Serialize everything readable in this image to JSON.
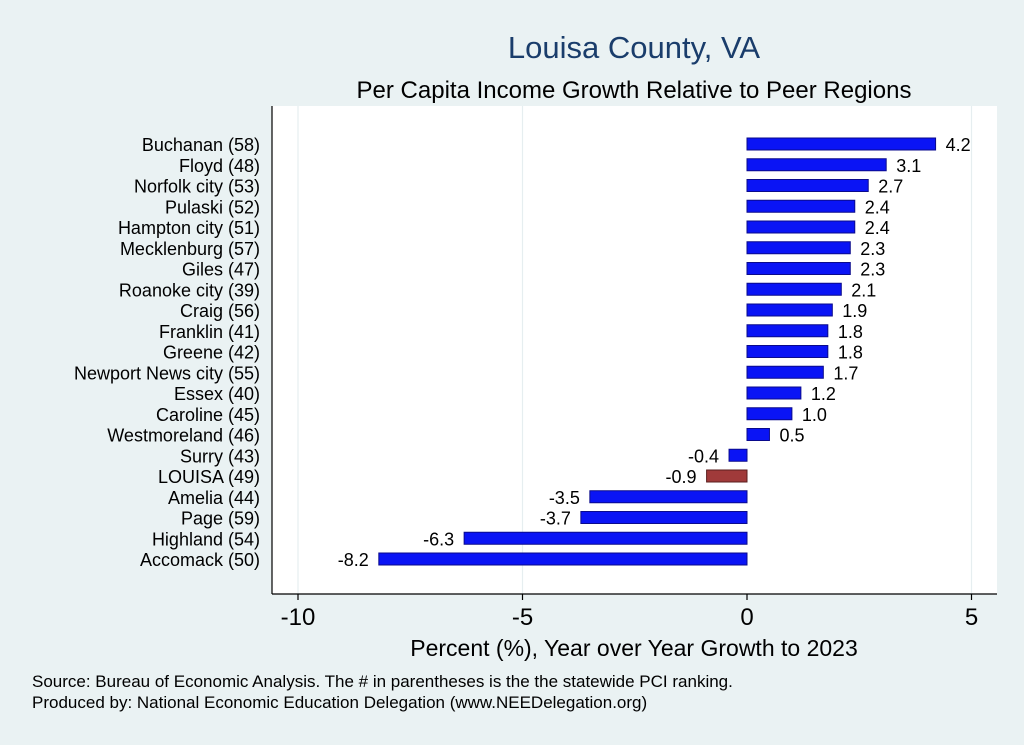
{
  "chart_data": {
    "type": "bar",
    "orientation": "horizontal",
    "title": "Louisa County, VA",
    "subtitle": "Per Capita Income Growth Relative to Peer Regions",
    "xlabel": "Percent (%), Year over Year Growth to 2023",
    "ylabel": "",
    "xlim": [
      -10.5,
      5.5
    ],
    "xticks": [
      -10,
      -5,
      0,
      5
    ],
    "grid": true,
    "categories": [
      "Buchanan (58)",
      "Floyd (48)",
      "Norfolk city (53)",
      "Pulaski (52)",
      "Hampton city (51)",
      "Mecklenburg (57)",
      "Giles (47)",
      "Roanoke city (39)",
      "Craig (56)",
      "Franklin (41)",
      "Greene (42)",
      "Newport News city (55)",
      "Essex (40)",
      "Caroline (45)",
      "Westmoreland (46)",
      "Surry (43)",
      "LOUISA (49)",
      "Amelia (44)",
      "Page (59)",
      "Highland (54)",
      "Accomack (50)"
    ],
    "values": [
      4.2,
      3.1,
      2.7,
      2.4,
      2.4,
      2.3,
      2.3,
      2.1,
      1.9,
      1.8,
      1.8,
      1.7,
      1.2,
      1.0,
      0.5,
      -0.4,
      -0.9,
      -3.5,
      -3.7,
      -6.3,
      -8.2
    ],
    "data_labels": [
      "4.2",
      "3.1",
      "2.7",
      "2.4",
      "2.4",
      "2.3",
      "2.3",
      "2.1",
      "1.9",
      "1.8",
      "1.8",
      "1.7",
      "1.2",
      "1.0",
      "0.5",
      "-0.4",
      "-0.9",
      "-3.5",
      "-3.7",
      "-6.3",
      "-8.2"
    ],
    "highlight_category": "LOUISA (49)",
    "colors": {
      "bar": "#0a14f5",
      "bar_edge": "#0a0a8c",
      "highlight": "#a03a3a",
      "highlight_edge": "#5a1e1e",
      "title": "#1a3d6b",
      "grid": "#e6eef0",
      "plot_bg": "#ffffff"
    }
  },
  "footer": {
    "source": "Source: Bureau of Economic Analysis. The # in parentheses is the the statewide PCI ranking.",
    "produced_by": "Produced by: National Economic Education Delegation (www.NEEDelegation.org)"
  }
}
